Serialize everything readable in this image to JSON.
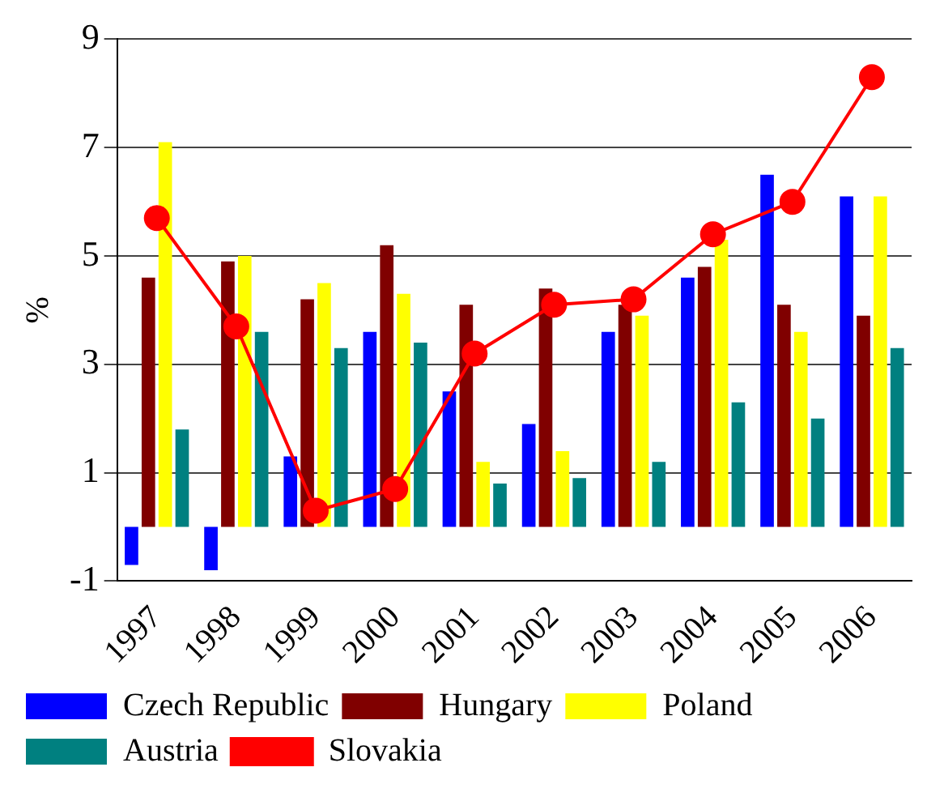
{
  "chart_data": {
    "type": "bar",
    "ylabel": "%",
    "categories": [
      "1997",
      "1998",
      "1999",
      "2000",
      "2001",
      "2002",
      "2003",
      "2004",
      "2005",
      "2006"
    ],
    "series": [
      {
        "name": "Czech Republic",
        "color": "#0000ff",
        "values": [
          -0.7,
          -0.8,
          1.3,
          3.6,
          2.5,
          1.9,
          3.6,
          4.6,
          6.5,
          6.1
        ]
      },
      {
        "name": "Hungary",
        "color": "#800000",
        "values": [
          4.6,
          4.9,
          4.2,
          5.2,
          4.1,
          4.4,
          4.1,
          4.8,
          4.1,
          3.9
        ]
      },
      {
        "name": "Poland",
        "color": "#ffff00",
        "values": [
          7.1,
          5.0,
          4.5,
          4.3,
          1.2,
          1.4,
          3.9,
          5.3,
          3.6,
          6.1
        ]
      },
      {
        "name": "Austria",
        "color": "#008080",
        "values": [
          1.8,
          3.6,
          3.3,
          3.4,
          0.8,
          0.9,
          1.2,
          2.3,
          2.0,
          3.3
        ]
      },
      {
        "name": "Slovakia",
        "type": "line",
        "color": "#ff0000",
        "marker": "circle",
        "values": [
          5.7,
          3.7,
          0.3,
          0.7,
          3.2,
          4.1,
          4.2,
          5.4,
          6.0,
          8.3
        ]
      }
    ],
    "ylim": [
      -1,
      9
    ],
    "yticks": [
      -1,
      1,
      3,
      5,
      7,
      9
    ],
    "grid": "y",
    "legend": "bottom"
  }
}
